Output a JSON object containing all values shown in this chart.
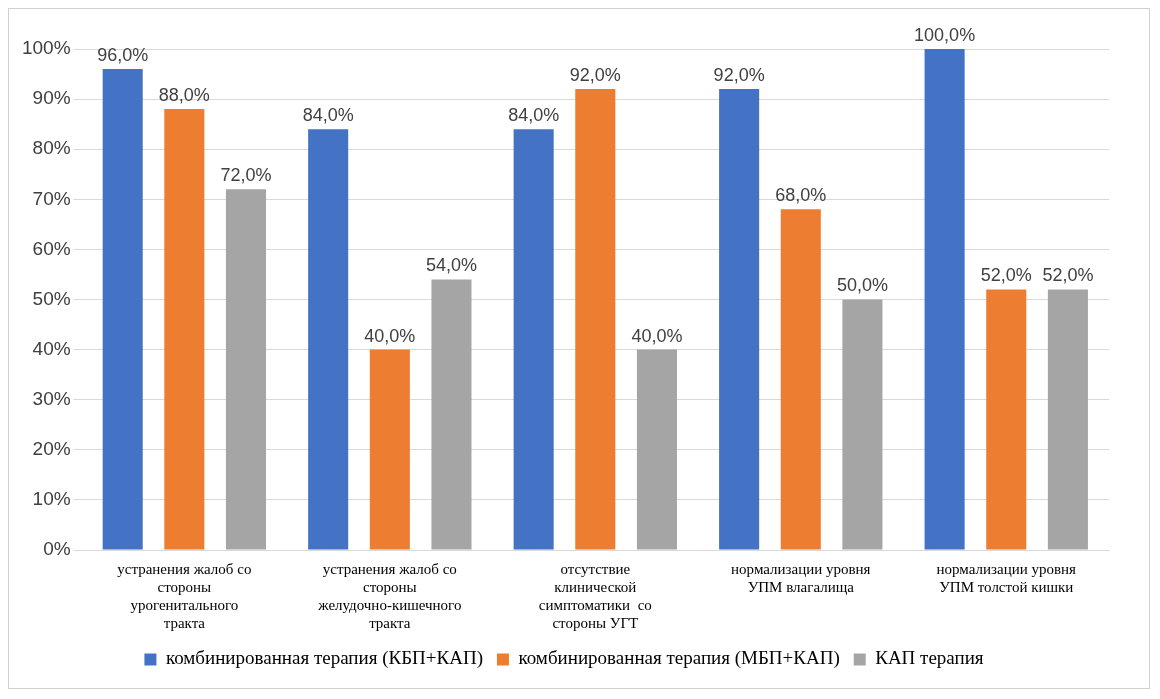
{
  "chart_data": {
    "type": "bar",
    "categories": [
      "устранения жалоб со стороны урогенитального тракта",
      "устранения жалоб со стороны желудочно-кишечного тракта",
      "отсутствие клинической симптоматики  со стороны УГТ",
      "нормализации уровня УПМ влагалища",
      "нормализации уровня УПМ толстой кишки"
    ],
    "series": [
      {
        "name": "комбинированная терапия (КБП+КАП)",
        "color": "#4472c4",
        "values": [
          96,
          84,
          84,
          92,
          100
        ],
        "value_labels": [
          "96,0%",
          "84,0%",
          "84,0%",
          "92,0%",
          "100,0%"
        ]
      },
      {
        "name": "комбинированная терапия (МБП+КАП)",
        "color": "#ed7d31",
        "values": [
          88,
          40,
          92,
          68,
          52
        ],
        "value_labels": [
          "88,0%",
          "40,0%",
          "92,0%",
          "68,0%",
          "52,0%"
        ]
      },
      {
        "name": "КАП терапия",
        "color": "#a5a5a5",
        "values": [
          72,
          54,
          40,
          50,
          52
        ],
        "value_labels": [
          "72,0%",
          "54,0%",
          "40,0%",
          "50,0%",
          "52,0%"
        ]
      }
    ],
    "ylim": [
      0,
      100
    ],
    "yticks": [
      {
        "value": 0,
        "label": "0%"
      },
      {
        "value": 10,
        "label": "10%"
      },
      {
        "value": 20,
        "label": "20%"
      },
      {
        "value": 30,
        "label": "30%"
      },
      {
        "value": 40,
        "label": "40%"
      },
      {
        "value": 50,
        "label": "50%"
      },
      {
        "value": 60,
        "label": "60%"
      },
      {
        "value": 70,
        "label": "70%"
      },
      {
        "value": 80,
        "label": "80%"
      },
      {
        "value": 90,
        "label": "90%"
      },
      {
        "value": 100,
        "label": "100%"
      }
    ],
    "grid": "y",
    "legend": "bottom"
  }
}
